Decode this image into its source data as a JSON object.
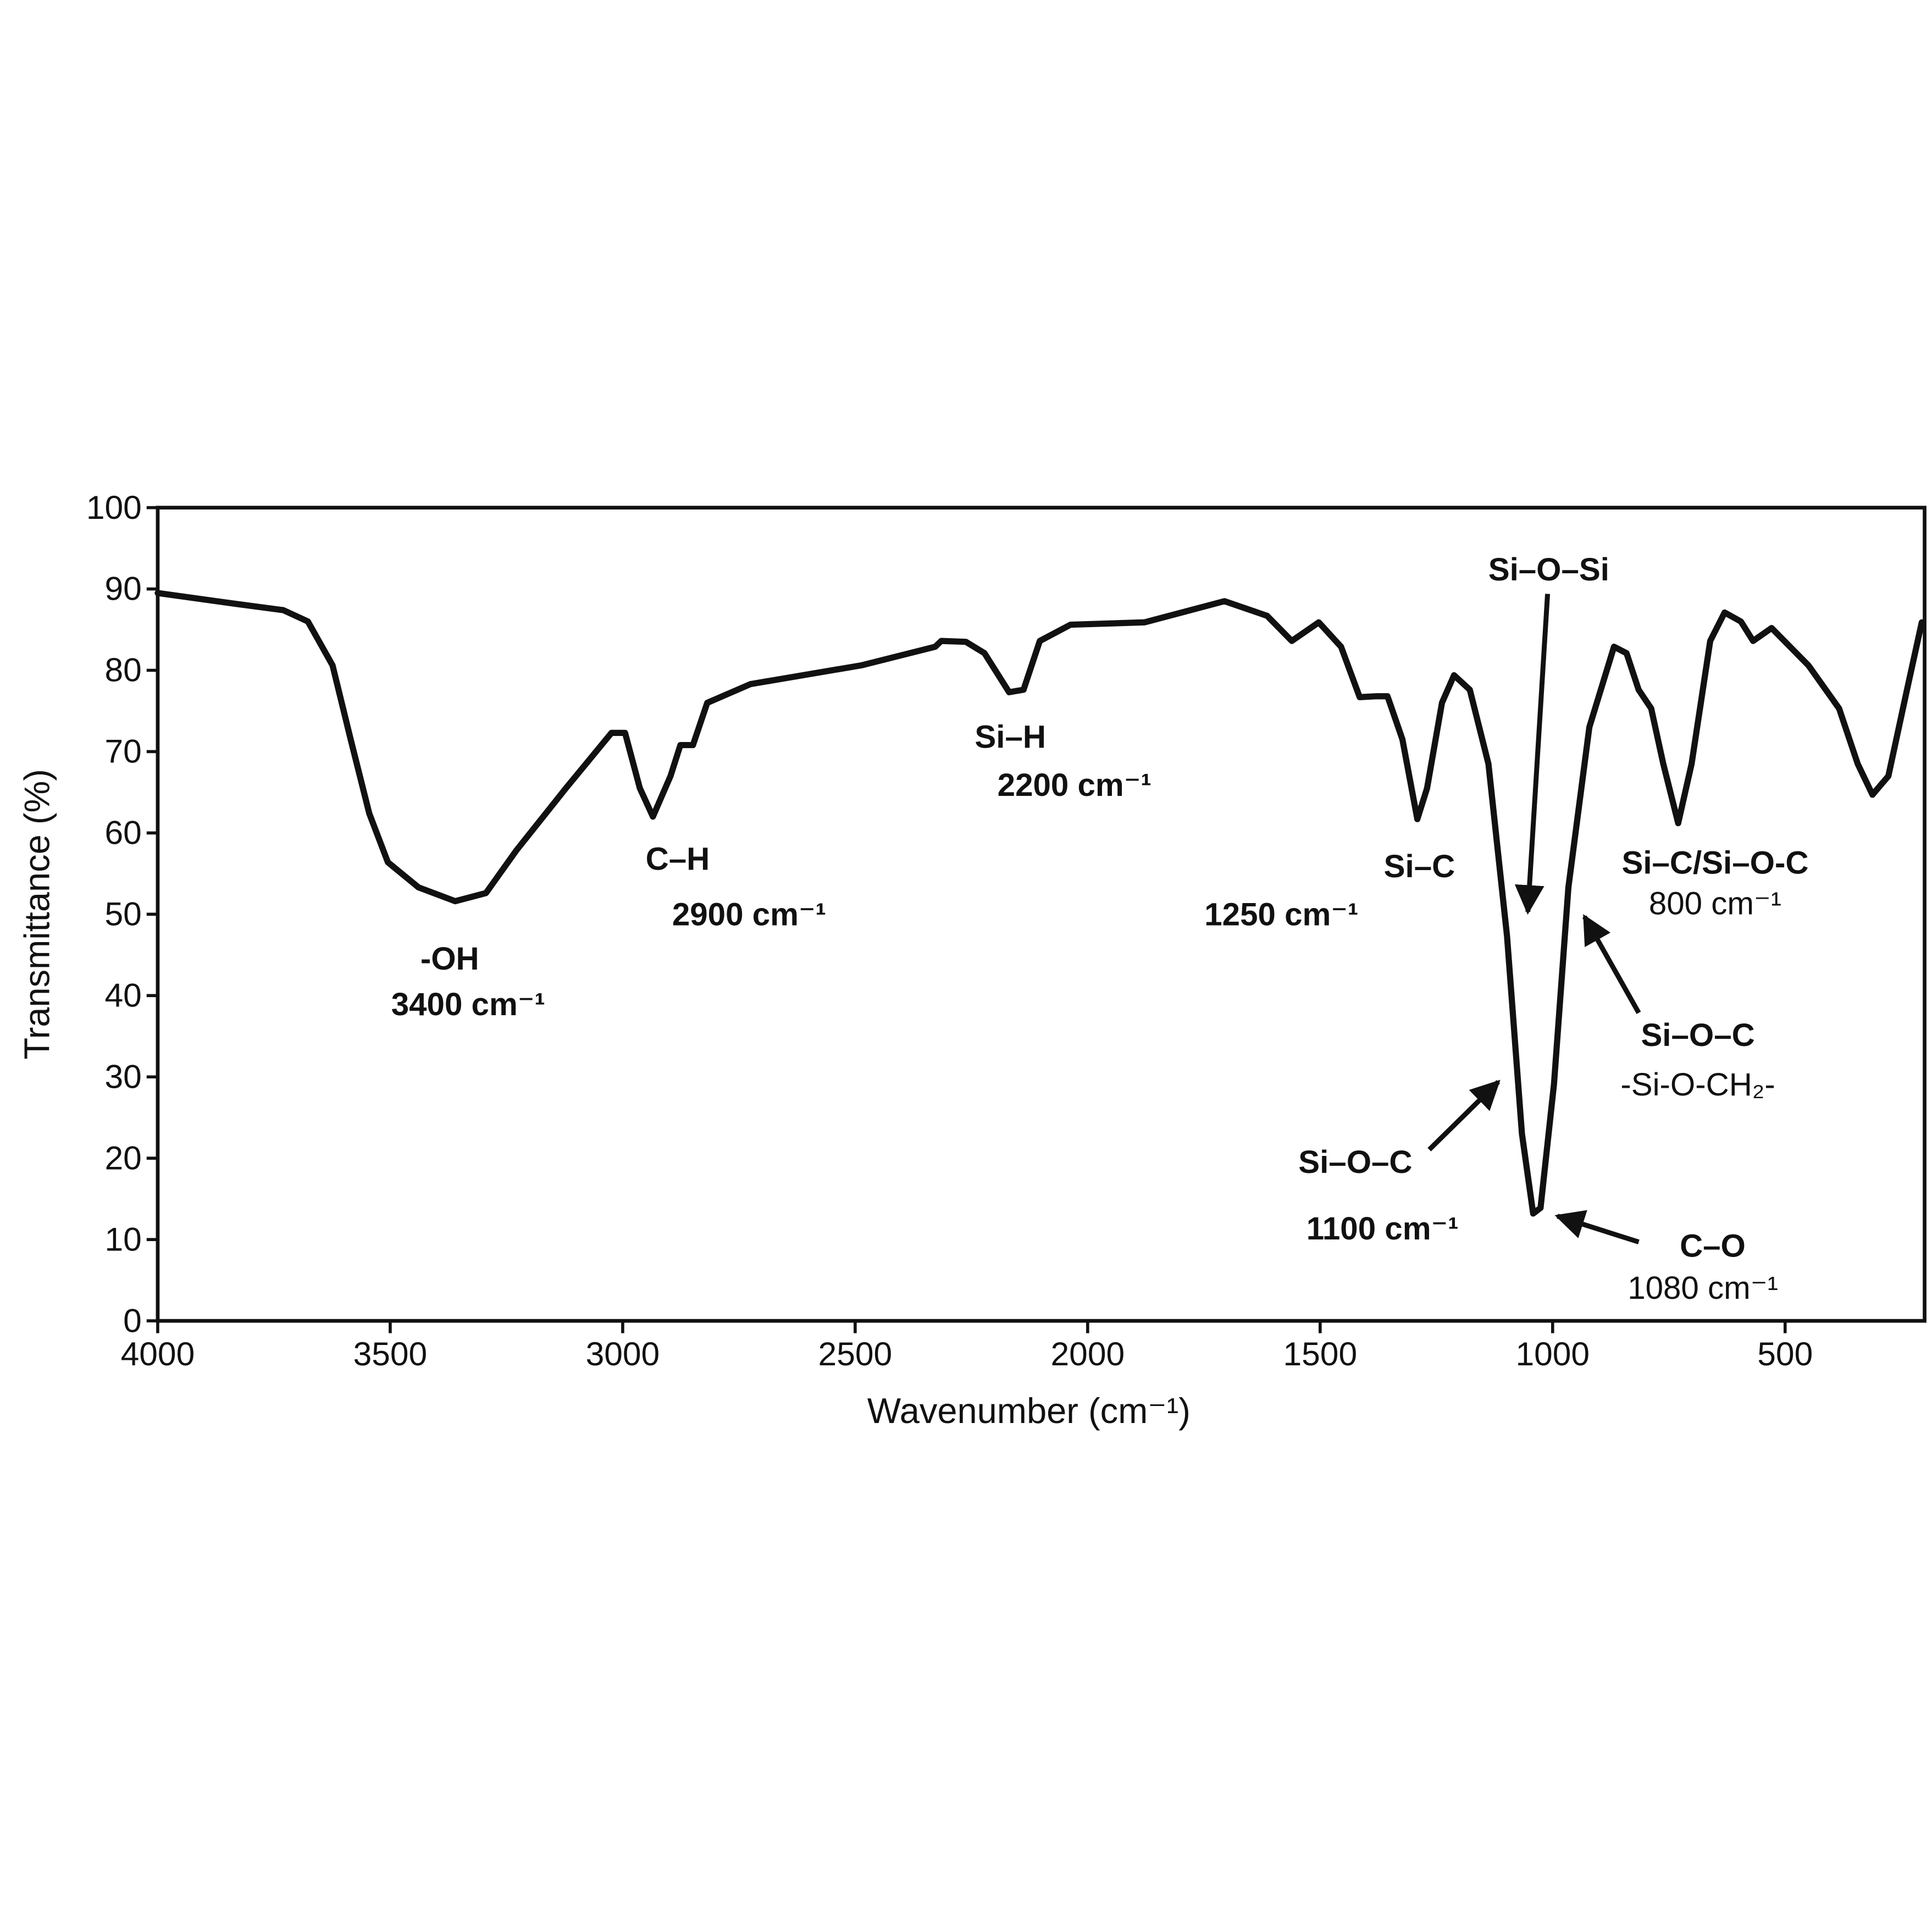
{
  "chart_data": {
    "type": "line",
    "x_label": "Wavenumber (cm⁻¹)",
    "y_label": "Transmittance (%)",
    "xlim": [
      4000,
      200
    ],
    "ylim": [
      0,
      100
    ],
    "xticks": [
      4000,
      3500,
      3000,
      2500,
      2000,
      1500,
      1000,
      500
    ],
    "yticks": [
      0,
      10,
      20,
      30,
      40,
      50,
      60,
      70,
      80,
      90,
      100
    ],
    "color": "#111111",
    "x": [
      4000,
      3836,
      3730,
      3677,
      3624,
      3585,
      3545,
      3505,
      3439,
      3360,
      3294,
      3228,
      3122,
      3024,
      2995,
      2963,
      2935,
      2897,
      2876,
      2849,
      2818,
      2725,
      2487,
      2328,
      2315,
      2262,
      2222,
      2169,
      2138,
      2103,
      2037,
      1878,
      1706,
      1614,
      1561,
      1503,
      1455,
      1415,
      1381,
      1355,
      1323,
      1291,
      1270,
      1238,
      1212,
      1178,
      1138,
      1098,
      1066,
      1042,
      1026,
      997,
      966,
      921,
      868,
      841,
      815,
      788,
      762,
      730,
      701,
      661,
      630,
      595,
      569,
      529,
      450,
      384,
      344,
      312,
      278,
      238,
      206
    ],
    "values": [
      89.5,
      88.2,
      87.4,
      86,
      80.6,
      71.5,
      62.4,
      56.4,
      53.3,
      51.6,
      52.6,
      57.9,
      65.5,
      72.3,
      72.3,
      65.5,
      62,
      67,
      70.8,
      70.8,
      76,
      78.3,
      80.6,
      82.9,
      83.6,
      83.5,
      82.1,
      77.3,
      77.6,
      83.6,
      85.6,
      85.9,
      88.5,
      86.7,
      83.6,
      85.9,
      82.9,
      76.7,
      76.8,
      76.8,
      71.5,
      61.7,
      65.5,
      76,
      79.4,
      77.6,
      68.5,
      47.3,
      23,
      13.2,
      13.9,
      29.1,
      53.3,
      73,
      82.9,
      82.1,
      77.6,
      75.3,
      68.5,
      61.2,
      68.5,
      83.6,
      87.1,
      86,
      83.6,
      85.2,
      80.6,
      75.3,
      68.5,
      64.7,
      67,
      77.6,
      85.9
    ],
    "annotations": [
      {
        "text": "-OH"
      },
      {
        "text": "3400 cm⁻¹"
      },
      {
        "text": "C–H"
      },
      {
        "text": "2900 cm⁻¹"
      },
      {
        "text": "Si–H"
      },
      {
        "text": "2200 cm⁻¹"
      },
      {
        "text": "1250 cm⁻¹"
      },
      {
        "text": "Si–C"
      },
      {
        "text": "Si–O–Si"
      },
      {
        "text": "Si–C/Si–O-C"
      },
      {
        "text": "800 cm⁻¹"
      },
      {
        "text": "Si–O–C"
      },
      {
        "text": "-Si-O-CH₂-"
      },
      {
        "text": "Si–O–C"
      },
      {
        "text": "1100 cm⁻¹"
      },
      {
        "text": "C–O"
      },
      {
        "text": "1080 cm⁻¹"
      }
    ]
  }
}
